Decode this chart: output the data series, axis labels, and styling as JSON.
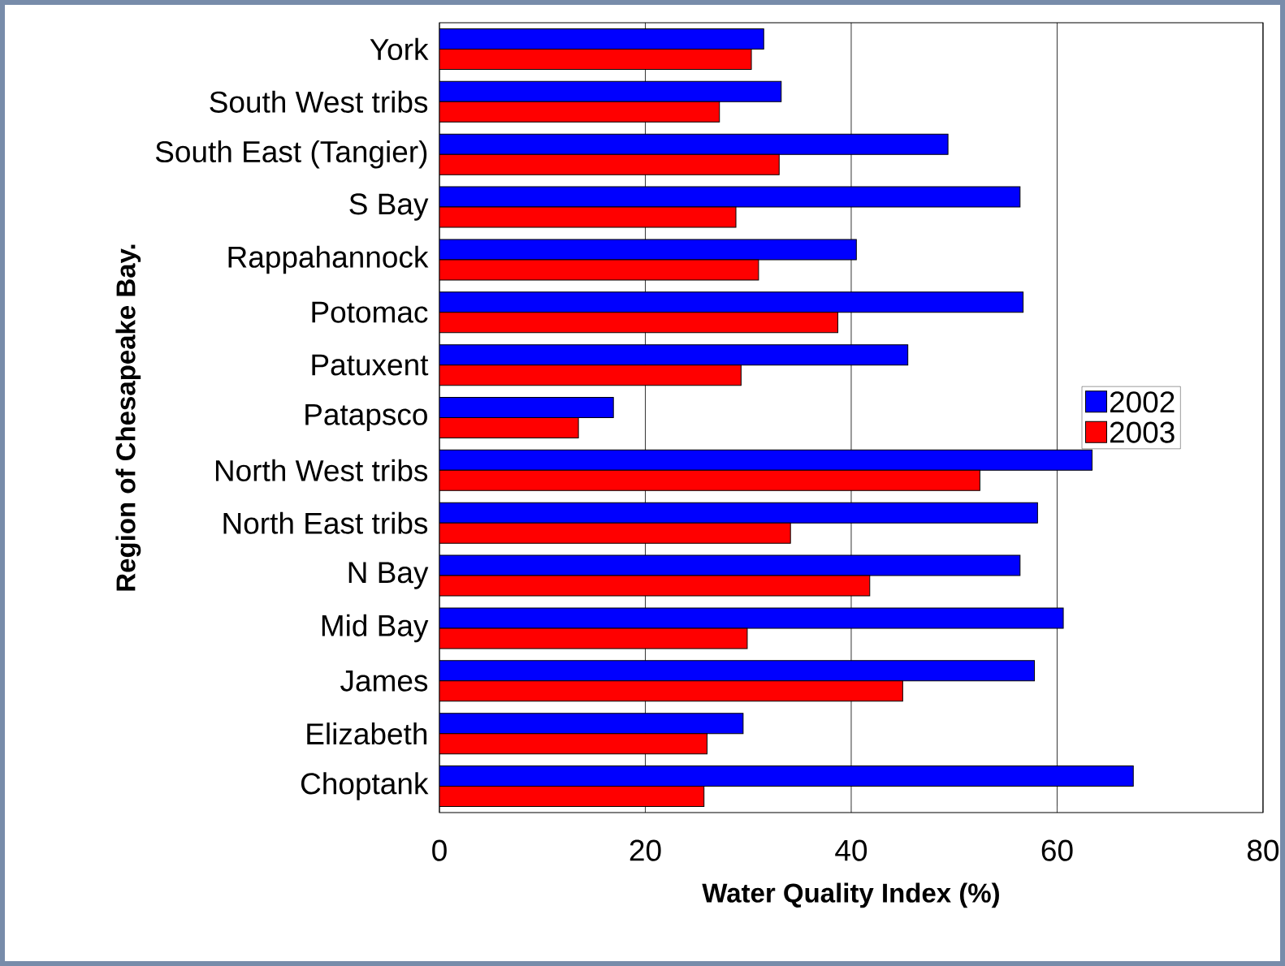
{
  "chart_data": {
    "type": "bar",
    "orientation": "horizontal",
    "xlabel": "Water Quality Index (%)",
    "ylabel": "Region of Chesapeake Bay.",
    "categories": [
      "York",
      "South West tribs",
      "South East (Tangier)",
      "S Bay",
      "Rappahannock",
      "Potomac",
      "Patuxent",
      "Patapsco",
      "North West tribs",
      "North East tribs",
      "N Bay",
      "Mid Bay",
      "James",
      "Elizabeth",
      "Choptank"
    ],
    "series": [
      {
        "name": "2002",
        "color": "#0000ff",
        "values": [
          31.5,
          33.2,
          49.4,
          56.4,
          40.5,
          56.7,
          45.5,
          16.9,
          63.4,
          58.1,
          56.4,
          60.6,
          57.8,
          29.5,
          67.4
        ]
      },
      {
        "name": "2003",
        "color": "#ff0000",
        "values": [
          30.3,
          27.2,
          33.0,
          28.8,
          31.0,
          38.7,
          29.3,
          13.5,
          52.5,
          34.1,
          41.8,
          29.9,
          45.0,
          26.0,
          25.7
        ]
      }
    ],
    "xlim": [
      0,
      80
    ],
    "xticks": [
      0,
      20,
      40,
      60,
      80
    ],
    "grid": "x",
    "legend": "right"
  }
}
